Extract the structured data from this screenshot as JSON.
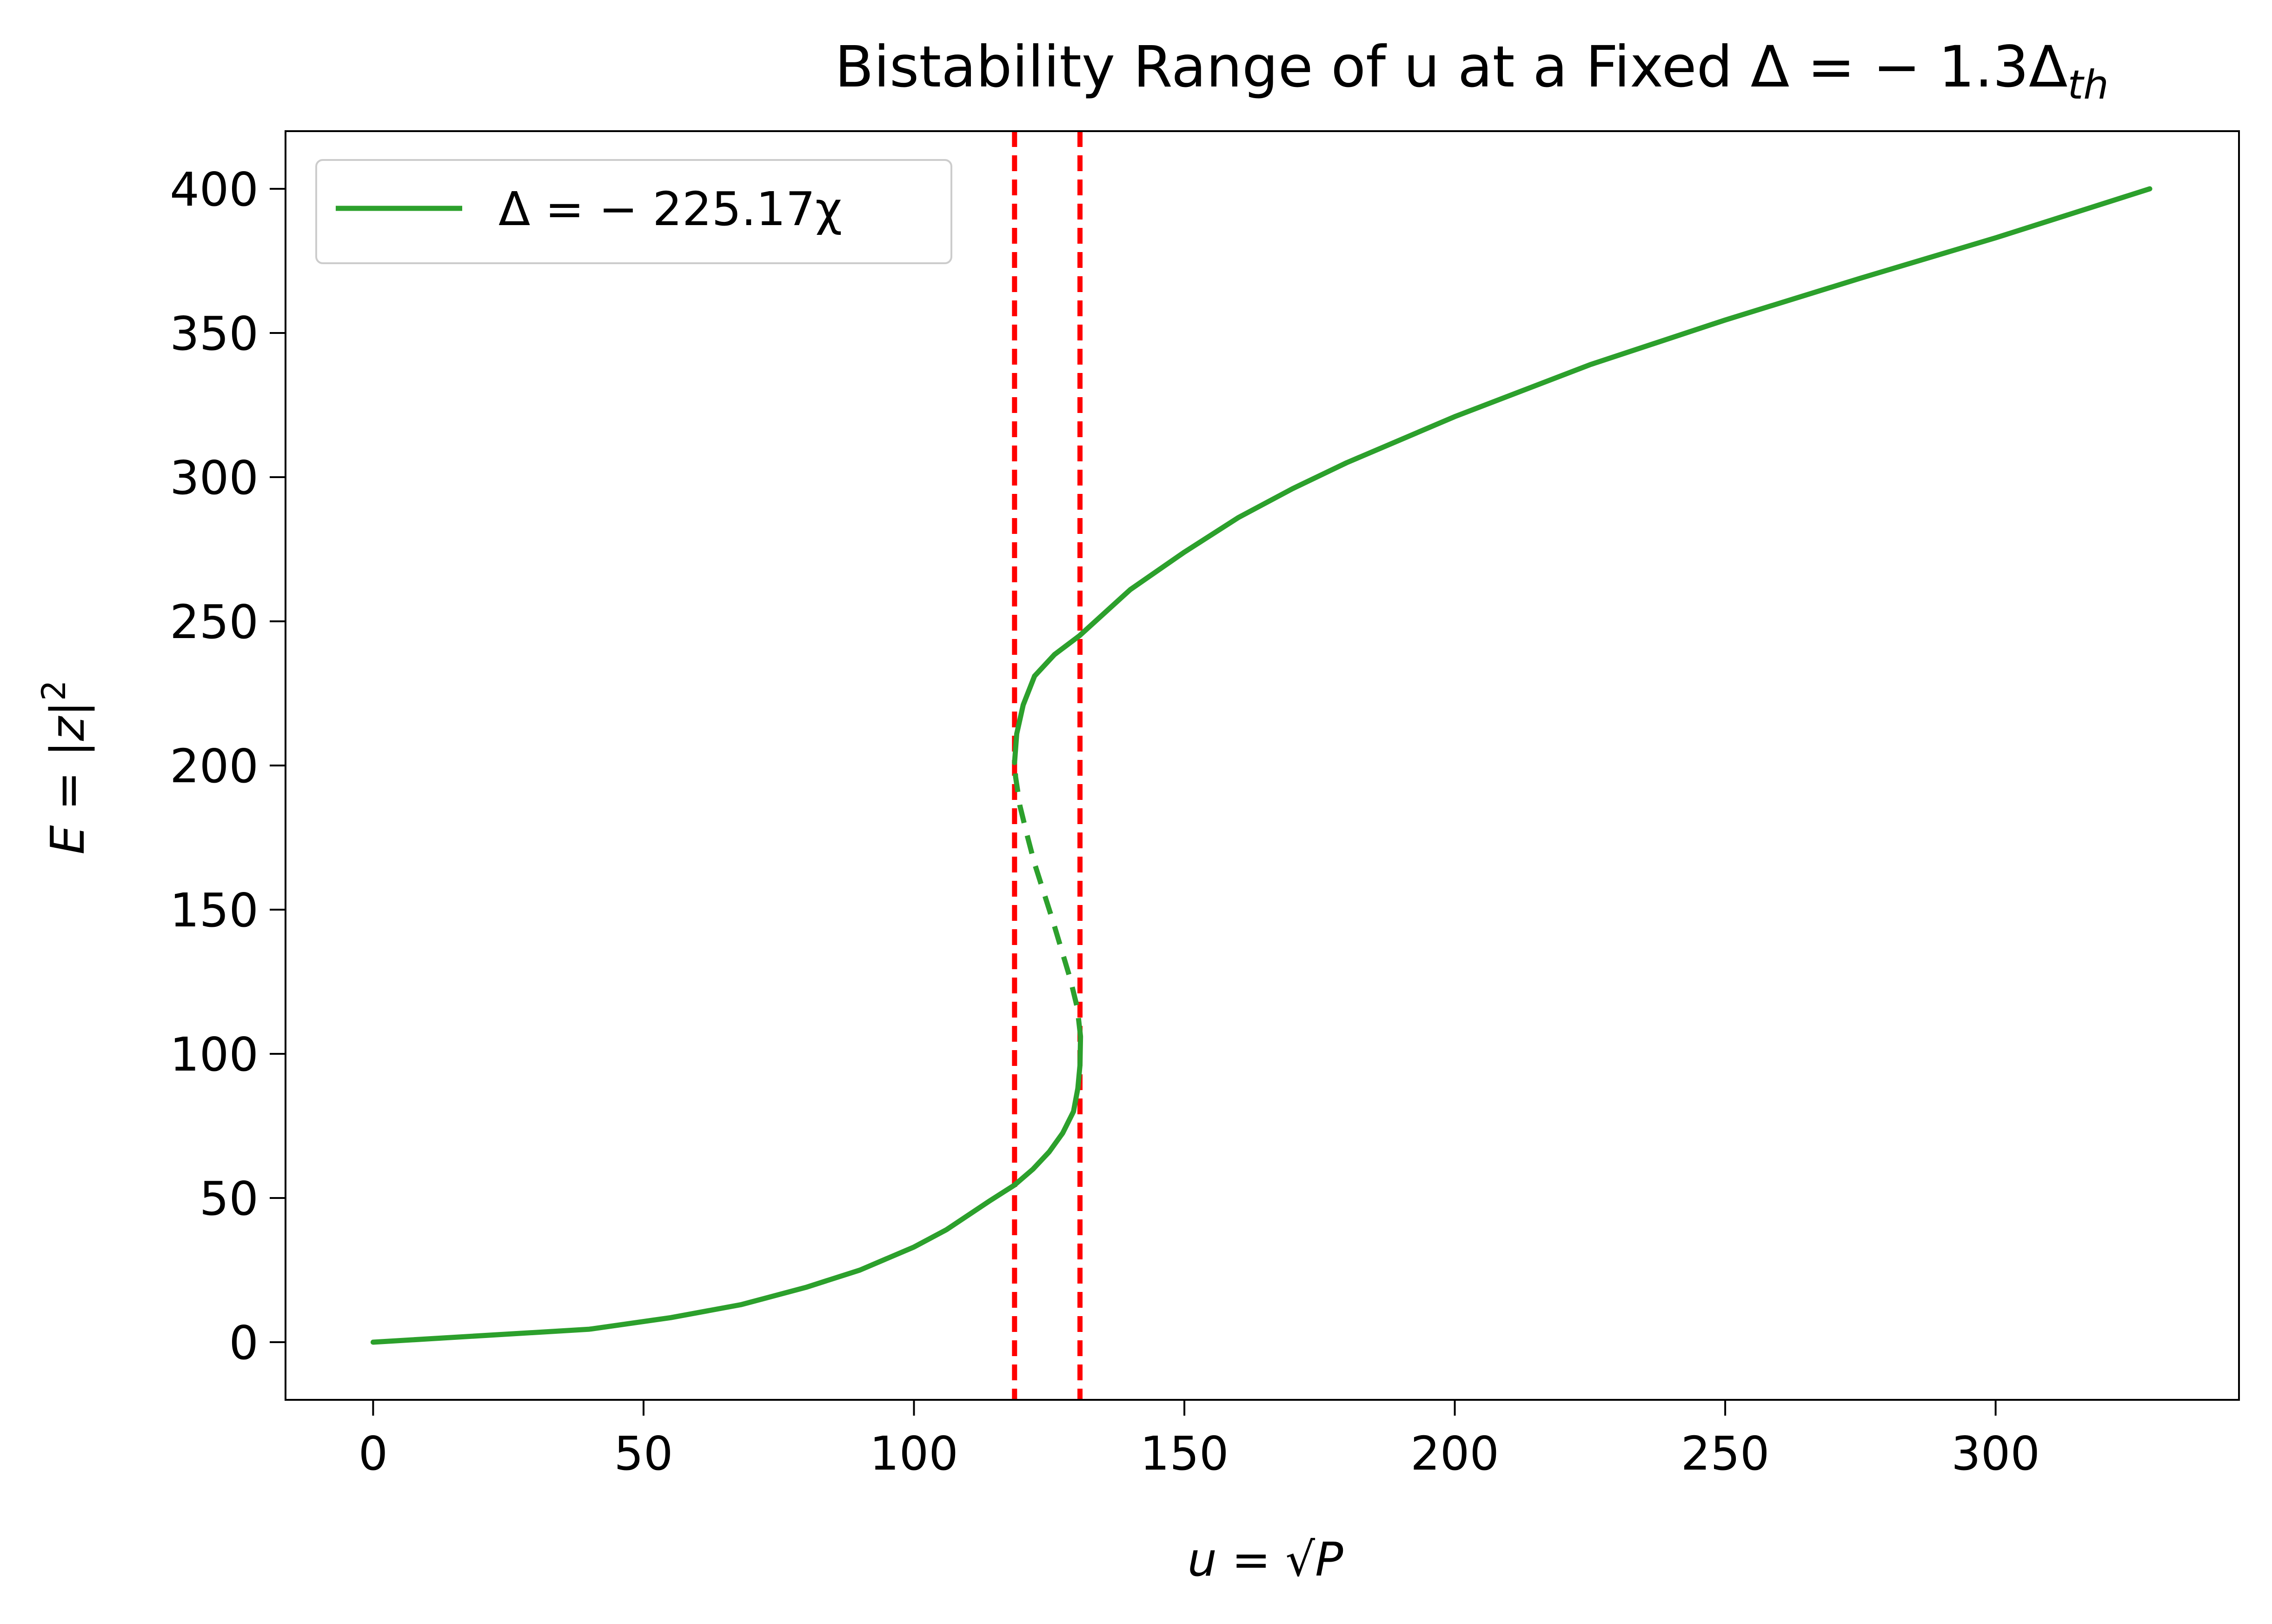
{
  "chart_data": {
    "type": "line",
    "title": {
      "main": "Bistability Range of u at a Fixed Δ = − 1.3Δ",
      "subscript": "th"
    },
    "xlabel": {
      "var": "u",
      "eq": " = ",
      "radical": "√",
      "radicand": "P"
    },
    "ylabel": {
      "var": "E",
      "eq": " = ",
      "abs_open": "|",
      "inner": "z",
      "abs_close": "|",
      "power": "2"
    },
    "xlim": [
      -16.2,
      345.0
    ],
    "ylim": [
      -20,
      420
    ],
    "xticks": [
      0,
      50,
      100,
      150,
      200,
      250,
      300
    ],
    "yticks": [
      0,
      50,
      100,
      150,
      200,
      250,
      300,
      350,
      400
    ],
    "grid": false,
    "legend_position": "upper-left",
    "series": [
      {
        "name": "Δ = − 225.17χ",
        "color": "#2ca02c",
        "style": "solid",
        "segments": [
          {
            "style": "solid",
            "points": [
              [
                0,
                0
              ],
              [
                40,
                4.5
              ],
              [
                55,
                8.5
              ],
              [
                68,
                13
              ],
              [
                80,
                19
              ],
              [
                90,
                25
              ],
              [
                100,
                33
              ],
              [
                106,
                39
              ],
              [
                110,
                44
              ],
              [
                114,
                49
              ],
              [
                118.6,
                54.5
              ],
              [
                122,
                60
              ],
              [
                125,
                66
              ],
              [
                127.5,
                72.5
              ],
              [
                129.5,
                80
              ],
              [
                130.3,
                88
              ],
              [
                130.7,
                96
              ],
              [
                130.8,
                106
              ]
            ]
          },
          {
            "style": "dashed",
            "points": [
              [
                130.8,
                106
              ],
              [
                130.2,
                116
              ],
              [
                128.9,
                126
              ],
              [
                127.3,
                136
              ],
              [
                125.7,
                146
              ],
              [
                124,
                156
              ],
              [
                122.3,
                166
              ],
              [
                120.9,
                176
              ],
              [
                119.6,
                186
              ],
              [
                118.8,
                196
              ],
              [
                118.6,
                201
              ]
            ]
          },
          {
            "style": "solid",
            "points": [
              [
                118.6,
                201
              ],
              [
                119,
                211
              ],
              [
                120.2,
                221
              ],
              [
                122.3,
                231
              ],
              [
                126,
                238.5
              ],
              [
                130.6,
                245
              ],
              [
                140,
                261
              ],
              [
                150,
                274
              ],
              [
                160,
                286
              ],
              [
                170,
                296
              ],
              [
                180,
                305
              ],
              [
                200,
                321
              ],
              [
                225,
                339
              ],
              [
                250,
                354.5
              ],
              [
                275,
                369
              ],
              [
                300,
                383
              ],
              [
                328.5,
                400
              ]
            ]
          }
        ]
      }
    ],
    "vlines": [
      {
        "x": 118.6,
        "color": "#ff0000",
        "style": "dashed"
      },
      {
        "x": 130.7,
        "color": "#ff0000",
        "style": "dashed"
      }
    ]
  }
}
